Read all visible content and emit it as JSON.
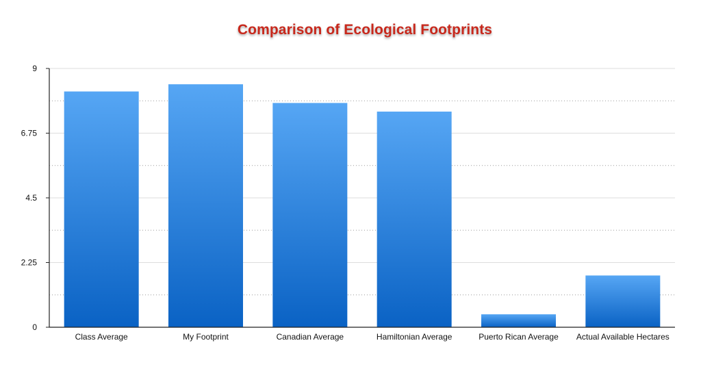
{
  "chart_data": {
    "type": "bar",
    "title": "Comparison of Ecological Footprints",
    "xlabel": "",
    "ylabel": "",
    "categories": [
      "Class Average",
      "My Footprint",
      "Canadian Average",
      "Hamiltonian Average",
      "Puerto Rican Average",
      "Actual Available Hectares"
    ],
    "values": [
      8.2,
      8.45,
      7.8,
      7.5,
      0.45,
      1.8
    ],
    "ylim": [
      0,
      9
    ],
    "yticks": [
      "0",
      "2.25",
      "4.5",
      "6.75",
      "9"
    ],
    "grid": true,
    "legend": "none",
    "colors": {
      "bar_top": "#56a6f4",
      "bar_bottom": "#0a62c4",
      "title": "#c8281c",
      "grid": "#dddddd"
    }
  }
}
